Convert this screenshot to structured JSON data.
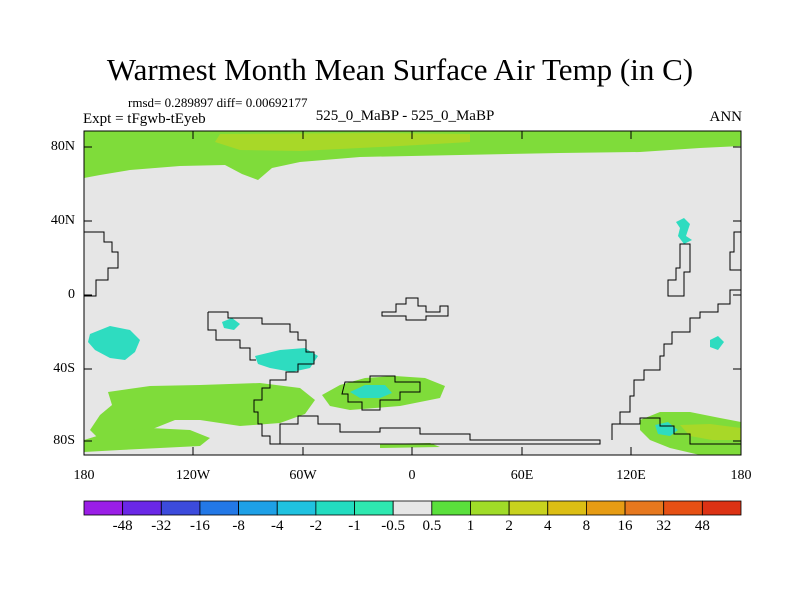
{
  "title": "Warmest Month Mean Surface Air Temp (in C)",
  "stats": "rmsd= 0.289897 diff= 0.00692177",
  "experiment": "Expt = tFgwb-tEyeb",
  "center_label": "525_0_MaBP - 525_0_MaBP",
  "season": "ANN",
  "y_ticks": [
    "80N",
    "40N",
    "0",
    "40S",
    "80S"
  ],
  "x_ticks": [
    "180",
    "120W",
    "60W",
    "0",
    "60E",
    "120E",
    "180"
  ],
  "colorbar": {
    "labels": [
      "-48",
      "-32",
      "-16",
      "-8",
      "-4",
      "-2",
      "-1",
      "-0.5",
      "0.5",
      "1",
      "2",
      "4",
      "8",
      "16",
      "32",
      "48"
    ],
    "colors": [
      "#9a1ee6",
      "#6a28e6",
      "#3c4bdc",
      "#2378e6",
      "#1ea0e6",
      "#20c2e0",
      "#23dcc0",
      "#2ee8b0",
      "#e6e6e6",
      "#5ae03c",
      "#a0dc28",
      "#c8d21e",
      "#dcbe14",
      "#e69c14",
      "#e6781e",
      "#e65014",
      "#dc3214"
    ]
  },
  "colors": {
    "ocean_land_fill": "#e6e6e6",
    "warm_anomaly": "#7fdc3a",
    "strong_warm": "#a8d828",
    "cool_anomaly": "#2edcc0"
  }
}
